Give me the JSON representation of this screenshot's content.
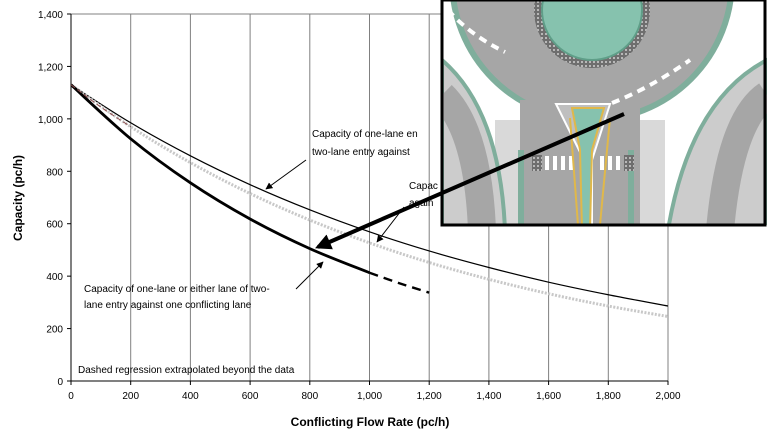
{
  "chart_data": {
    "type": "line",
    "title": "",
    "xlabel": "Conflicting Flow Rate (pc/h)",
    "ylabel": "Capacity (pc/h)",
    "xlim": [
      0,
      2000
    ],
    "ylim": [
      0,
      1400
    ],
    "x_ticks": [
      "0",
      "200",
      "400",
      "600",
      "800",
      "1,000",
      "1,200",
      "1,400",
      "1,600",
      "1,800",
      "2,000"
    ],
    "y_ticks": [
      "0",
      "200",
      "400",
      "600",
      "800",
      "1,000",
      "1,200",
      "1,400"
    ],
    "grid": "vertical",
    "series": [
      {
        "style": "thin black line",
        "x": [
          0,
          200,
          400,
          600,
          800,
          1000,
          1200,
          1400,
          1600,
          1800,
          2000
        ],
        "values": [
          1130,
          985,
          859,
          749,
          653,
          569,
          496,
          433,
          377,
          329,
          286
        ]
      },
      {
        "style": "light gray dotted line",
        "x": [
          0,
          200,
          400,
          600,
          800,
          1000,
          1200,
          1400,
          1600,
          1800,
          2000
        ],
        "values": [
          1130,
          970,
          833,
          715,
          614,
          527,
          452,
          388,
          333,
          286,
          246
        ]
      },
      {
        "style": "thick black line",
        "x": [
          0,
          200,
          400,
          600,
          800,
          1000
        ],
        "values": [
          1130,
          924,
          756,
          618,
          505,
          413
        ],
        "extrapolated": {
          "x": [
            1000,
            1100,
            1200
          ],
          "values": [
            413,
            373,
            337
          ]
        }
      }
    ],
    "annotations": {
      "two_lane_top_1": "Capacity of one-lane en",
      "two_lane_top_2": "two-lane entry against",
      "mid_1": "Capac",
      "mid_2": "again",
      "one_lane_1": "Capacity of one-lane or either lane of two-",
      "one_lane_2": "lane entry against one conflicting lane",
      "note": "Dashed regression extrapolated beyond the data"
    },
    "inset": {
      "description": "roundabout entry diagram",
      "colors": {
        "asphalt": "#a6a6a6",
        "island": "#86c2ae",
        "curb": "#7fae9c",
        "yellow_line": "#e0b84a",
        "white": "#ffffff"
      }
    }
  }
}
